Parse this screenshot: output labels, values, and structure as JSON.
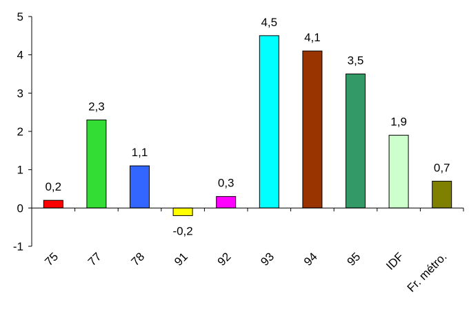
{
  "chart_data": {
    "type": "bar",
    "categories": [
      "75",
      "77",
      "78",
      "91",
      "92",
      "93",
      "94",
      "95",
      "IDF",
      "Fr. métro."
    ],
    "values": [
      0.2,
      2.3,
      1.1,
      -0.2,
      0.3,
      4.5,
      4.1,
      3.5,
      1.9,
      0.7
    ],
    "value_labels": [
      "0,2",
      "2,3",
      "1,1",
      "-0,2",
      "0,3",
      "4,5",
      "4,1",
      "3,5",
      "1,9",
      "0,7"
    ],
    "colors": [
      "#ff0000",
      "#33dd33",
      "#3366ff",
      "#ffff00",
      "#ff00ff",
      "#00ffff",
      "#993300",
      "#339966",
      "#ccffcc",
      "#808000"
    ],
    "y_ticks": [
      -1,
      0,
      1,
      2,
      3,
      4,
      5
    ],
    "ylim": [
      -1,
      5
    ],
    "title": "",
    "xlabel": "",
    "ylabel": "",
    "grid": false,
    "legend": "none"
  }
}
